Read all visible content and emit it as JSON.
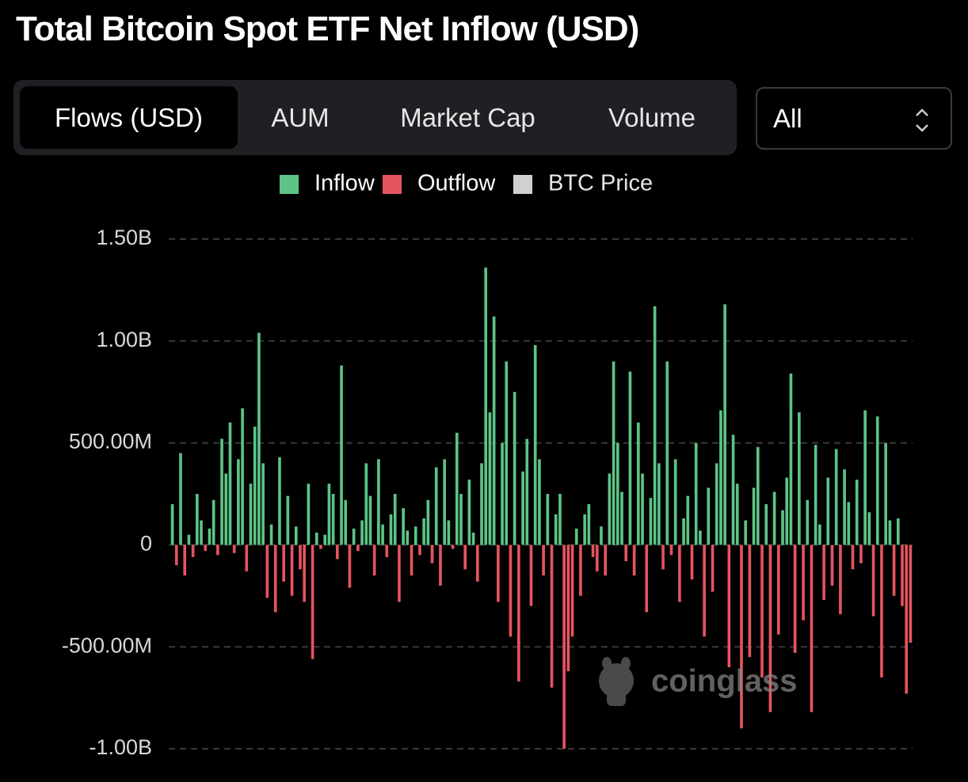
{
  "chart_data": {
    "type": "bar",
    "title": "Total Bitcoin Spot ETF Net Inflow (USD)",
    "tabs": [
      "Flows (USD)",
      "AUM",
      "Market Cap",
      "Volume"
    ],
    "range_select": "All",
    "legend": [
      {
        "name": "Inflow",
        "color": "#5cc486"
      },
      {
        "name": "Outflow",
        "color": "#e5545f"
      },
      {
        "name": "BTC Price",
        "color": "#d0d0d0"
      }
    ],
    "watermark": "coinglass",
    "ylim": [
      -1000000000,
      1500000000
    ],
    "yticks": [
      {
        "value": -1000000000,
        "label": "-1.00B"
      },
      {
        "value": -500000000,
        "label": "-500.00M"
      },
      0,
      {
        "value": 500000000,
        "label": "500.00M"
      },
      {
        "value": 1000000000,
        "label": "1.00B"
      },
      {
        "value": 1500000000,
        "label": "1.50B"
      }
    ],
    "grid": true,
    "values": [
      200000000.0,
      -100000000.0,
      450000000.0,
      -150000000.0,
      50000000.0,
      -60000000.0,
      250000000.0,
      120000000.0,
      -30000000.0,
      80000000.0,
      220000000.0,
      -50000000.0,
      520000000.0,
      350000000.0,
      600000000.0,
      -40000000.0,
      420000000.0,
      670000000.0,
      -130000000.0,
      300000000.0,
      580000000.0,
      1040000000.0,
      400000000.0,
      -260000000.0,
      100000000.0,
      -330000000.0,
      430000000.0,
      -180000000.0,
      240000000.0,
      -250000000.0,
      90000000.0,
      -120000000.0,
      -280000000.0,
      300000000.0,
      -560000000.0,
      60000000.0,
      -20000000.0,
      50000000.0,
      300000000.0,
      250000000.0,
      -70000000.0,
      880000000.0,
      220000000.0,
      -210000000.0,
      80000000.0,
      -30000000.0,
      120000000.0,
      400000000.0,
      240000000.0,
      -150000000.0,
      420000000.0,
      100000000.0,
      -60000000.0,
      150000000.0,
      250000000.0,
      -280000000.0,
      180000000.0,
      70000000.0,
      -150000000.0,
      90000000.0,
      -50000000.0,
      130000000.0,
      220000000.0,
      -90000000.0,
      380000000.0,
      -200000000.0,
      420000000.0,
      120000000.0,
      -20000000.0,
      550000000.0,
      250000000.0,
      -120000000.0,
      320000000.0,
      60000000.0,
      -180000000.0,
      400000000.0,
      1360000000.0,
      650000000.0,
      1120000000.0,
      -280000000.0,
      500000000.0,
      900000000.0,
      -450000000.0,
      750000000.0,
      -670000000.0,
      360000000.0,
      520000000.0,
      -300000000.0,
      980000000.0,
      420000000.0,
      -150000000.0,
      250000000.0,
      -700000000.0,
      150000000.0,
      250000000.0,
      -1000000000.0,
      -620000000.0,
      -450000000.0,
      80000000.0,
      -250000000.0,
      150000000.0,
      200000000.0,
      -60000000.0,
      -130000000.0,
      90000000.0,
      -150000000.0,
      350000000.0,
      900000000.0,
      500000000.0,
      260000000.0,
      -80000000.0,
      850000000.0,
      -150000000.0,
      600000000.0,
      350000000.0,
      -330000000.0,
      230000000.0,
      1170000000.0,
      400000000.0,
      -120000000.0,
      900000000.0,
      -50000000.0,
      420000000.0,
      -280000000.0,
      130000000.0,
      240000000.0,
      -170000000.0,
      500000000.0,
      70000000.0,
      -450000000.0,
      280000000.0,
      -230000000.0,
      400000000.0,
      660000000.0,
      1180000000.0,
      -600000000.0,
      540000000.0,
      300000000.0,
      -900000000.0,
      120000000.0,
      -550000000.0,
      280000000.0,
      480000000.0,
      -650000000.0,
      200000000.0,
      -820000000.0,
      260000000.0,
      -440000000.0,
      170000000.0,
      330000000.0,
      840000000.0,
      -530000000.0,
      650000000.0,
      -370000000.0,
      220000000.0,
      -820000000.0,
      490000000.0,
      100000000.0,
      -270000000.0,
      330000000.0,
      -200000000.0,
      470000000.0,
      -340000000.0,
      370000000.0,
      210000000.0,
      -120000000.0,
      320000000.0,
      -90000000.0,
      660000000.0,
      160000000.0,
      -350000000.0,
      630000000.0,
      -650000000.0,
      500000000.0,
      120000000.0,
      -250000000.0,
      130000000.0,
      -300000000.0,
      -730000000.0,
      -480000000.0
    ]
  }
}
